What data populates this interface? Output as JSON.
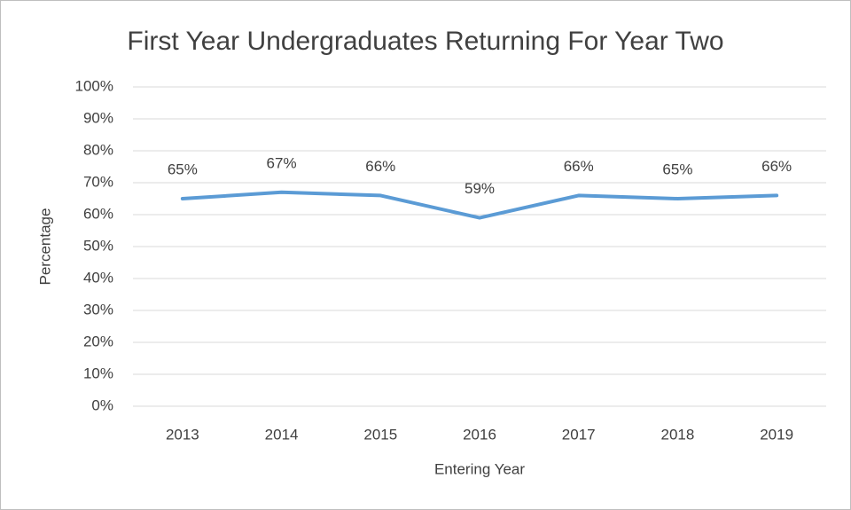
{
  "chart_data": {
    "type": "line",
    "title": "First Year Undergraduates Returning For Year Two",
    "x_label": "Entering Year",
    "y_label": "Percentage",
    "categories": [
      "2013",
      "2014",
      "2015",
      "2016",
      "2017",
      "2018",
      "2019"
    ],
    "series": [
      {
        "name": "Percentage",
        "color": "#5b9bd5",
        "values": [
          65,
          67,
          66,
          59,
          66,
          65,
          66
        ],
        "value_labels": [
          "65%",
          "67%",
          "66%",
          "59%",
          "66%",
          "65%",
          "66%"
        ]
      }
    ],
    "ylim": [
      0,
      100
    ],
    "yticks": [
      {
        "value": 0,
        "label": "0%"
      },
      {
        "value": 10,
        "label": "10%"
      },
      {
        "value": 20,
        "label": "20%"
      },
      {
        "value": 30,
        "label": "30%"
      },
      {
        "value": 40,
        "label": "40%"
      },
      {
        "value": 50,
        "label": "50%"
      },
      {
        "value": 60,
        "label": "60%"
      },
      {
        "value": 70,
        "label": "70%"
      },
      {
        "value": 80,
        "label": "80%"
      },
      {
        "value": 90,
        "label": "90%"
      },
      {
        "value": 100,
        "label": "100%"
      }
    ],
    "grid": true
  }
}
